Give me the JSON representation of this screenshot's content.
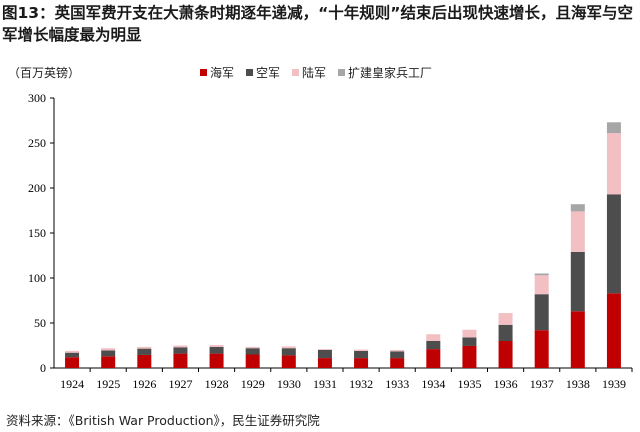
{
  "title": "图13：英国军费开支在大萧条时期逐年递减，“十年规则”结束后出现快速增长，且海军与空军增长幅度最为明显",
  "unit": "（百万英镑）",
  "footer": "资料来源：《British War Production》，民生证券研究院",
  "chart_data": {
    "type": "bar",
    "stacked": true,
    "categories": [
      "1924",
      "1925",
      "1926",
      "1927",
      "1928",
      "1929",
      "1930",
      "1931",
      "1932",
      "1933",
      "1934",
      "1935",
      "1936",
      "1937",
      "1938",
      "1939"
    ],
    "series": [
      {
        "name": "海军",
        "color": "#c00000",
        "values": [
          12,
          13,
          14.5,
          16,
          16,
          15,
          14,
          11,
          11,
          11,
          21,
          24.5,
          30,
          42,
          63,
          83
        ]
      },
      {
        "name": "空军",
        "color": "#4d4d4d",
        "values": [
          5,
          6.5,
          7,
          7,
          7.5,
          7,
          8,
          9,
          8,
          7.5,
          9,
          9.5,
          18,
          40,
          66,
          110
        ]
      },
      {
        "name": "陆军",
        "color": "#f2bfc3",
        "values": [
          2,
          2.5,
          2,
          2,
          2,
          1.5,
          2,
          1,
          1.5,
          1.5,
          7.5,
          8.5,
          13,
          21,
          45,
          68
        ]
      },
      {
        "name": "扩建皇家兵工厂",
        "color": "#a6a6a6",
        "values": [
          0,
          0,
          0,
          0,
          0,
          0,
          0,
          0,
          0,
          0,
          0,
          0,
          0,
          2,
          8,
          12
        ]
      }
    ],
    "yticks": [
      "0",
      "50",
      "100",
      "150",
      "200",
      "250",
      "300"
    ],
    "ylim": [
      0,
      300
    ],
    "legend": "top"
  }
}
